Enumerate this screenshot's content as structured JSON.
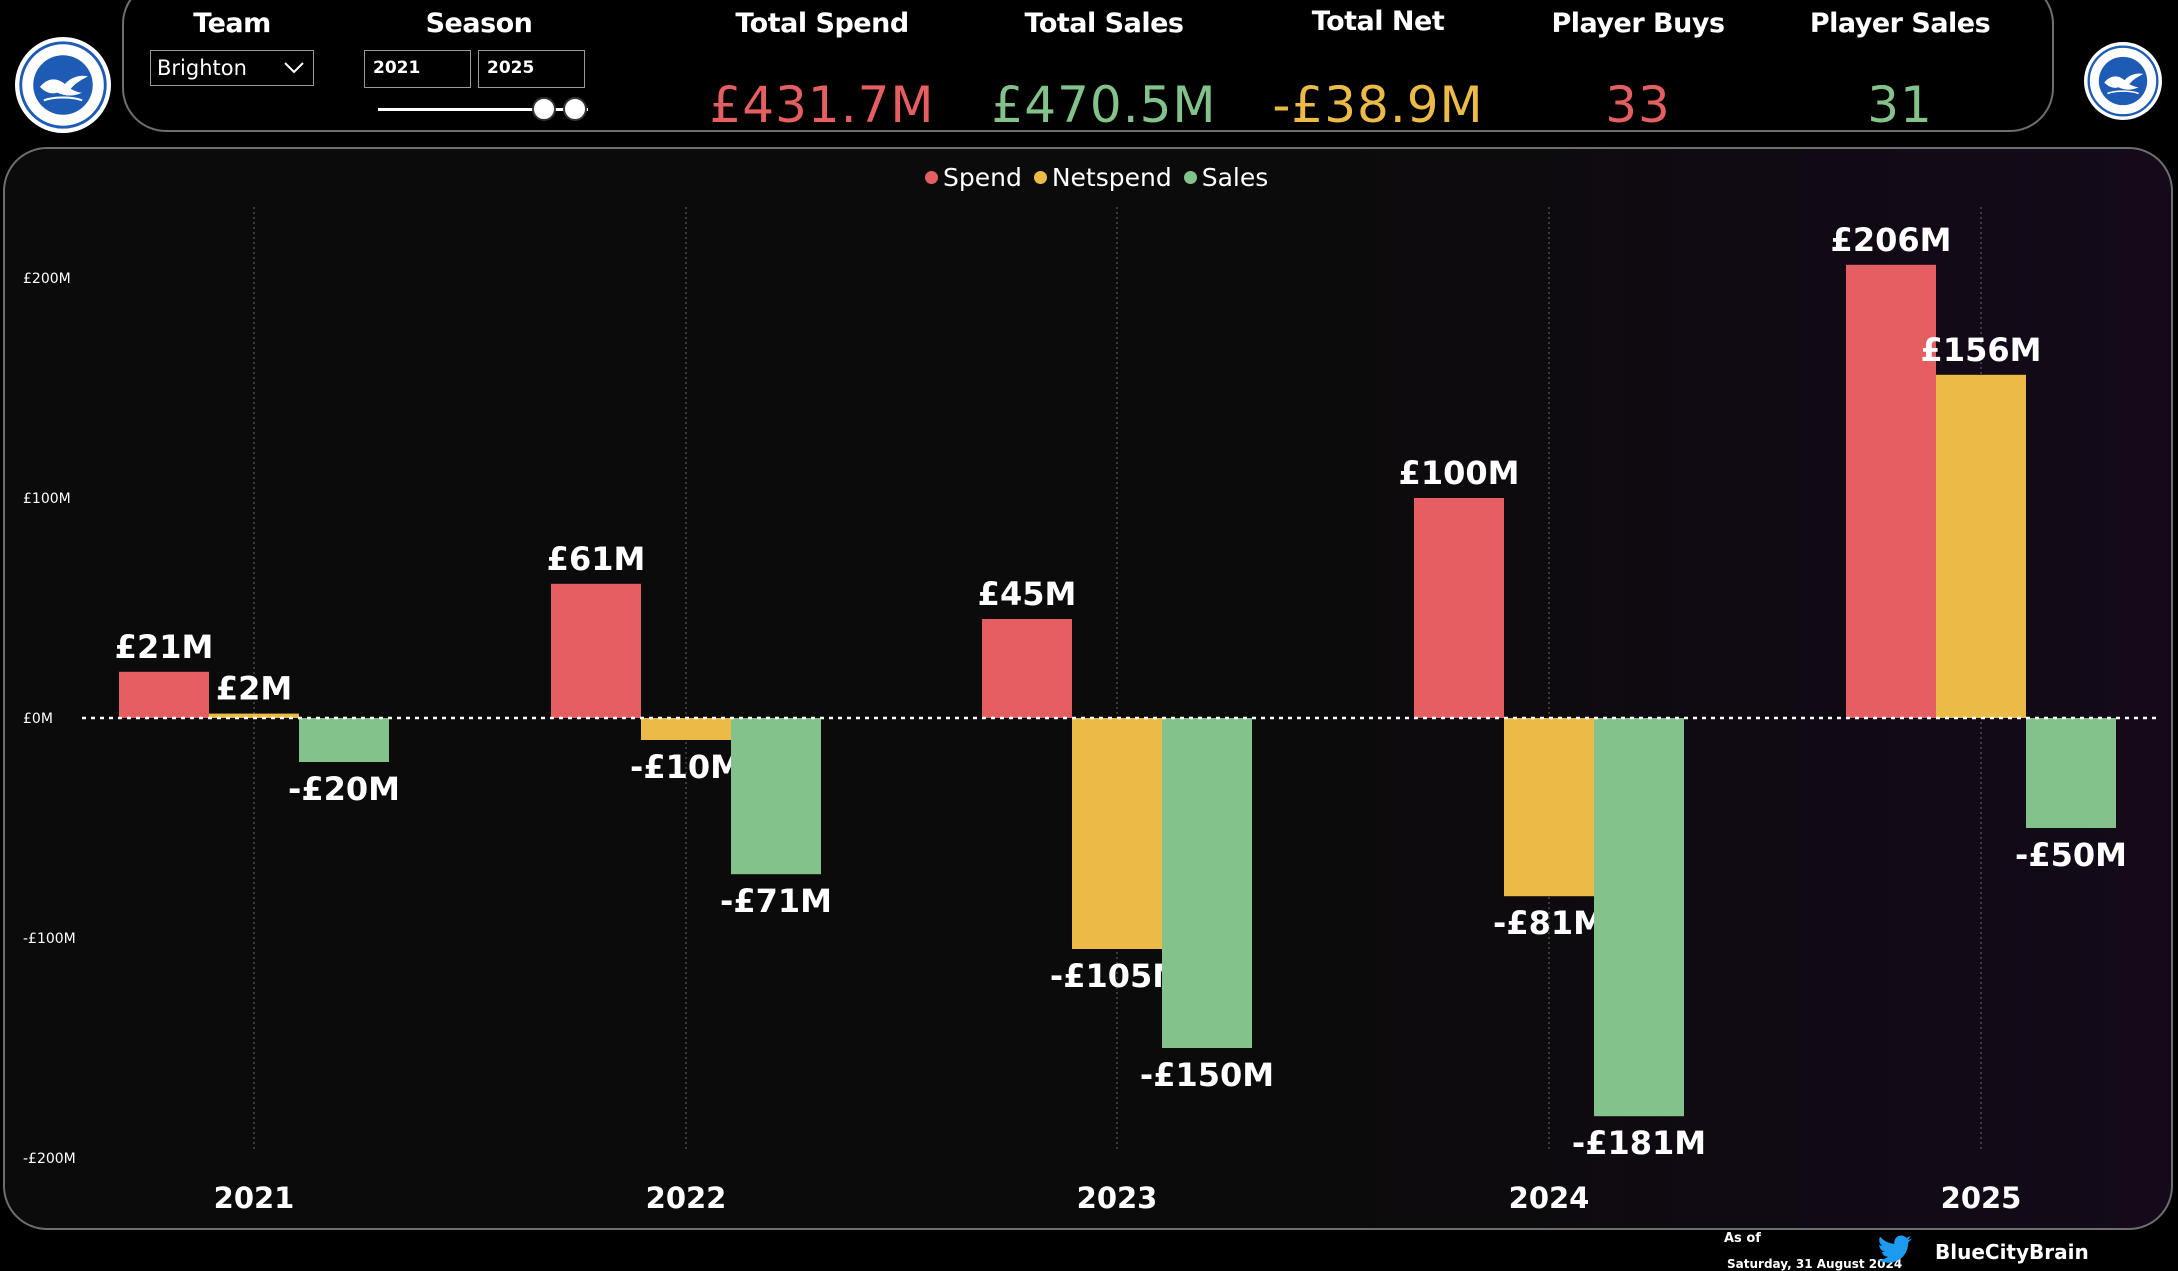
{
  "header": {
    "team_label": "Team",
    "team_value": "Brighton",
    "season_label": "Season",
    "season_start": "2021",
    "season_end": "2025",
    "season_slider_range": [
      0.79,
      0.94
    ],
    "kpis": [
      {
        "key": "total_spend",
        "label": "Total Spend",
        "value": "£431.7M",
        "color": "#e55e61"
      },
      {
        "key": "total_sales",
        "label": "Total Sales",
        "value": "£470.5M",
        "color": "#83c38b"
      },
      {
        "key": "total_net",
        "label": "Total Net",
        "value": "-£38.9M",
        "color": "#ecba47"
      },
      {
        "key": "player_buys",
        "label": "Player Buys",
        "value": "33",
        "color": "#e55e61"
      },
      {
        "key": "player_sales",
        "label": "Player Sales",
        "value": "31",
        "color": "#83c38b"
      }
    ]
  },
  "logos": {
    "left_icon": "brighton-crest-icon",
    "right_icon": "brighton-crest-icon",
    "crest_text_top": "BRIGHTON & HOVE",
    "crest_text_bottom": "ALBION"
  },
  "chart_data": {
    "type": "bar",
    "categories": [
      "2021",
      "2022",
      "2023",
      "2024",
      "2025"
    ],
    "series": [
      {
        "name": "Spend",
        "color": "#e55e61",
        "values": [
          21,
          61,
          45,
          100,
          206
        ],
        "labels": [
          "£21M",
          "£61M",
          "£45M",
          "£100M",
          "£206M"
        ]
      },
      {
        "name": "Netspend",
        "color": "#ecba47",
        "values": [
          2,
          -10,
          -105,
          -81,
          156
        ],
        "labels": [
          "£2M",
          "-£10M",
          "-£105M",
          "-£81M",
          "£156M"
        ]
      },
      {
        "name": "Sales",
        "color": "#83c38b",
        "values": [
          -20,
          -71,
          -150,
          -181,
          -50
        ],
        "labels": [
          "-£20M",
          "-£71M",
          "-£150M",
          "-£181M",
          "-£50M"
        ]
      }
    ],
    "yticks": [
      {
        "value": 200,
        "label": "£200M"
      },
      {
        "value": 100,
        "label": "£100M"
      },
      {
        "value": 0,
        "label": "£0M"
      },
      {
        "value": -100,
        "label": "-£100M"
      },
      {
        "value": -200,
        "label": "-£200M"
      }
    ],
    "ylim": [
      -200,
      200
    ],
    "legend_position": "top-center",
    "zero_line": "dotted"
  },
  "footer": {
    "as_of_label": "As of",
    "date": "Saturday, 31 August 2024",
    "twitter_icon": "twitter-bird-icon",
    "brand": "BlueCityBrain"
  }
}
